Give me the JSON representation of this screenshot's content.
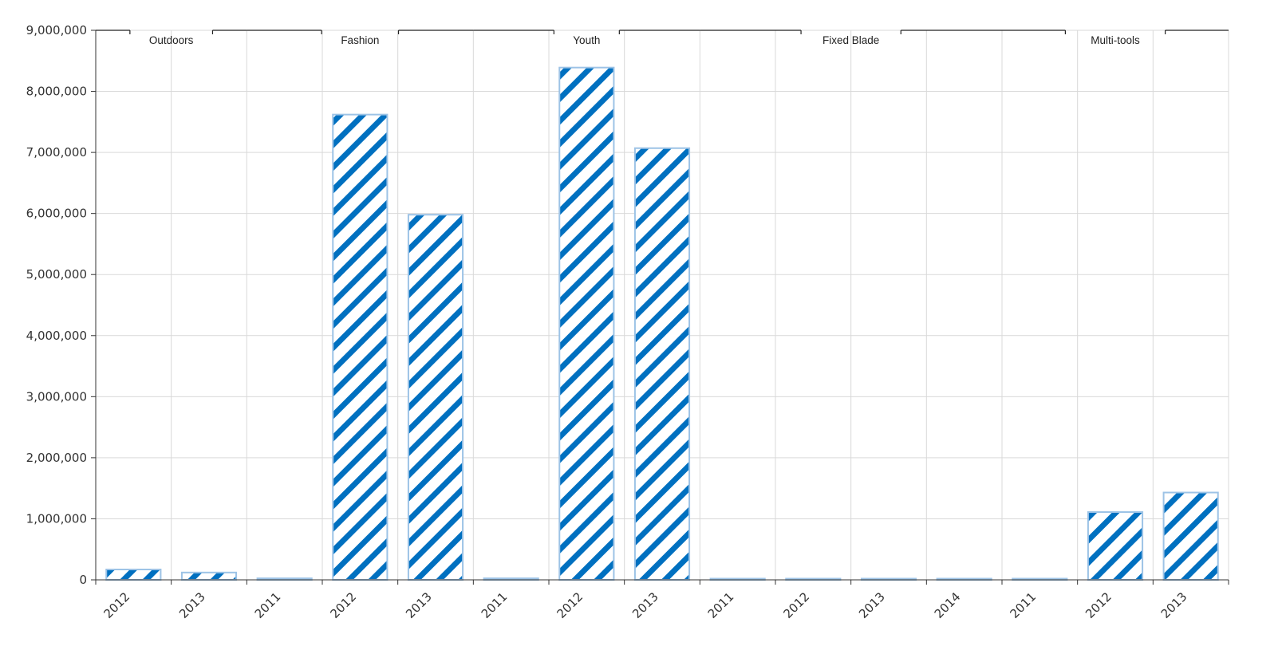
{
  "chart_data": {
    "type": "bar",
    "groups": [
      {
        "name": "Outdoors",
        "categories": [
          "2012",
          "2013"
        ],
        "values": [
          170000,
          120000
        ]
      },
      {
        "name": "Fashion",
        "categories": [
          "2011",
          "2012",
          "2013"
        ],
        "values": [
          25000,
          7620000,
          5980000
        ]
      },
      {
        "name": "Youth",
        "categories": [
          "2011",
          "2012",
          "2013"
        ],
        "values": [
          25000,
          8390000,
          7070000
        ]
      },
      {
        "name": "Fixed Blade",
        "categories": [
          "2011",
          "2012",
          "2013",
          "2014"
        ],
        "values": [
          5000,
          5000,
          5000,
          5000
        ]
      },
      {
        "name": "Multi-tools",
        "categories": [
          "2011",
          "2012",
          "2013"
        ],
        "values": [
          5000,
          1110000,
          1430000
        ]
      }
    ],
    "yticks": [
      "0",
      "1,000,000",
      "2,000,000",
      "3,000,000",
      "4,000,000",
      "5,000,000",
      "6,000,000",
      "7,000,000",
      "8,000,000",
      "9,000,000"
    ],
    "ylim": [
      0,
      9000000
    ],
    "grid": true,
    "legend": "none"
  },
  "colors": {
    "bar_stripe": "#0070c0",
    "bar_border": "#9dc3e6",
    "grid": "#d9d9d9",
    "axis": "#333333"
  }
}
